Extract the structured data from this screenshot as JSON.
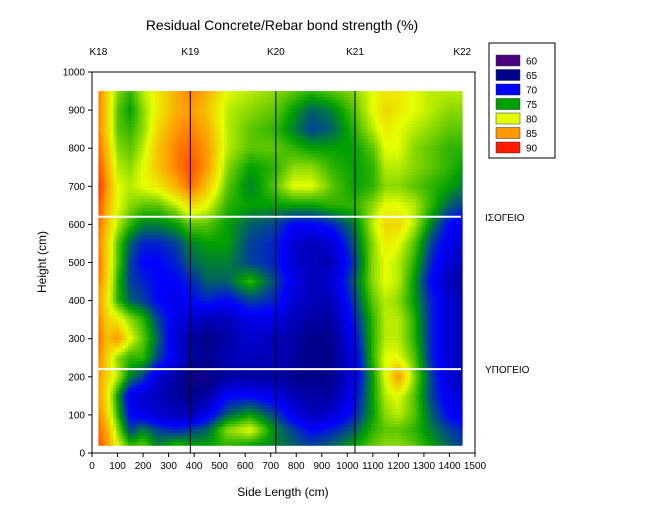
{
  "chart_data": {
    "type": "heatmap",
    "title": "Residual Concrete/Rebar bond strength  (%)",
    "xlabel": "Side Length (cm)",
    "ylabel": "Height (cm)",
    "xlim": [
      0,
      1500
    ],
    "ylim": [
      0,
      1000
    ],
    "x_ticks": [
      0,
      100,
      200,
      300,
      400,
      500,
      600,
      700,
      800,
      900,
      1000,
      1100,
      1200,
      1300,
      1400,
      1500
    ],
    "y_ticks": [
      0,
      100,
      200,
      300,
      400,
      500,
      600,
      700,
      800,
      900,
      1000
    ],
    "data_extent": {
      "x": [
        25,
        1450
      ],
      "y": [
        20,
        950
      ]
    },
    "columns": [
      {
        "label": "K18",
        "x": 25
      },
      {
        "label": "K19",
        "x": 385
      },
      {
        "label": "K20",
        "x": 720
      },
      {
        "label": "K21",
        "x": 1030
      },
      {
        "label": "K22",
        "x": 1450
      }
    ],
    "column_lines_x": [
      385,
      720,
      1030
    ],
    "floors": [
      {
        "label": "ΙΣΟΓΕΙΟ",
        "y": 620
      },
      {
        "label": "ΥΠΟΓΕΙΟ",
        "y": 220
      }
    ],
    "legend": {
      "placement": "top-right",
      "levels": [
        {
          "label": "60",
          "value": 60,
          "color": "#4b0082"
        },
        {
          "label": "65",
          "value": 65,
          "color": "#00008b"
        },
        {
          "label": "70",
          "value": 70,
          "color": "#0000ff"
        },
        {
          "label": "75",
          "value": 75,
          "color": "#00a000"
        },
        {
          "label": "80",
          "value": 80,
          "color": "#e6ff00"
        },
        {
          "label": "85",
          "value": 85,
          "color": "#ff9900"
        },
        {
          "label": "90",
          "value": 90,
          "color": "#ff1a00"
        }
      ]
    },
    "grid_x": [
      25,
      60,
      100,
      150,
      200,
      260,
      330,
      385,
      450,
      530,
      620,
      720,
      790,
      860,
      940,
      1030,
      1100,
      1150,
      1200,
      1260,
      1330,
      1400,
      1450
    ],
    "grid_y": [
      20,
      60,
      100,
      150,
      200,
      250,
      300,
      350,
      400,
      450,
      500,
      550,
      600,
      650,
      700,
      750,
      800,
      850,
      900,
      950
    ],
    "grid_values": [
      [
        88,
        85,
        80,
        76,
        77,
        74,
        76,
        75,
        75,
        76,
        75,
        74,
        73,
        72,
        73,
        75,
        77,
        78,
        78,
        77,
        75,
        73,
        72
      ],
      [
        87,
        84,
        78,
        72,
        74,
        72,
        71,
        72,
        73,
        78,
        80,
        74,
        72,
        70,
        71,
        73,
        76,
        77,
        77,
        76,
        74,
        72,
        71
      ],
      [
        86,
        82,
        76,
        70,
        69,
        68,
        67,
        67,
        69,
        73,
        75,
        72,
        69,
        67,
        68,
        71,
        75,
        78,
        79,
        77,
        73,
        70,
        69
      ],
      [
        85,
        81,
        75,
        69,
        68,
        67,
        66,
        65,
        66,
        70,
        70,
        69,
        67,
        66,
        66,
        70,
        75,
        79,
        80,
        77,
        72,
        69,
        68
      ],
      [
        85,
        82,
        79,
        74,
        72,
        68,
        66,
        64,
        64,
        66,
        66,
        66,
        65,
        65,
        65,
        69,
        75,
        80,
        85,
        78,
        72,
        68,
        67
      ],
      [
        86,
        82,
        78,
        76,
        76,
        72,
        69,
        66,
        65,
        67,
        67,
        67,
        66,
        65,
        65,
        69,
        76,
        80,
        80,
        77,
        71,
        68,
        67
      ],
      [
        87,
        83,
        85,
        80,
        77,
        73,
        68,
        66,
        65,
        66,
        68,
        67,
        66,
        65,
        65,
        70,
        76,
        79,
        79,
        76,
        71,
        68,
        67
      ],
      [
        86,
        82,
        81,
        78,
        76,
        72,
        69,
        68,
        67,
        67,
        69,
        69,
        67,
        66,
        66,
        71,
        76,
        79,
        79,
        76,
        71,
        68,
        67
      ],
      [
        85,
        81,
        76,
        73,
        72,
        70,
        69,
        70,
        71,
        70,
        72,
        71,
        68,
        67,
        67,
        72,
        77,
        79,
        78,
        75,
        71,
        68,
        67
      ],
      [
        86,
        82,
        76,
        72,
        71,
        70,
        70,
        71,
        73,
        73,
        76,
        72,
        69,
        67,
        68,
        73,
        78,
        80,
        79,
        75,
        70,
        67,
        66
      ],
      [
        87,
        82,
        77,
        72,
        70,
        70,
        71,
        73,
        74,
        74,
        72,
        71,
        68,
        67,
        67,
        72,
        78,
        80,
        79,
        76,
        71,
        68,
        67
      ],
      [
        86,
        82,
        77,
        73,
        71,
        71,
        72,
        74,
        75,
        75,
        72,
        71,
        68,
        67,
        68,
        73,
        78,
        81,
        80,
        77,
        72,
        69,
        68
      ],
      [
        87,
        83,
        79,
        76,
        74,
        74,
        75,
        77,
        77,
        75,
        73,
        72,
        70,
        70,
        71,
        74,
        79,
        82,
        82,
        79,
        74,
        70,
        69
      ],
      [
        88,
        84,
        80,
        78,
        77,
        77,
        79,
        82,
        80,
        76,
        75,
        75,
        75,
        75,
        76,
        76,
        78,
        80,
        80,
        79,
        76,
        73,
        72
      ],
      [
        89,
        85,
        80,
        79,
        80,
        81,
        84,
        87,
        83,
        77,
        74,
        77,
        80,
        80,
        77,
        75,
        76,
        78,
        78,
        77,
        76,
        75,
        74
      ],
      [
        88,
        84,
        79,
        78,
        80,
        83,
        86,
        88,
        85,
        78,
        75,
        76,
        78,
        78,
        76,
        75,
        76,
        79,
        79,
        78,
        77,
        76,
        75
      ],
      [
        87,
        83,
        78,
        77,
        79,
        83,
        86,
        87,
        85,
        79,
        77,
        77,
        76,
        75,
        75,
        75,
        77,
        80,
        80,
        78,
        77,
        76,
        76
      ],
      [
        86,
        82,
        77,
        76,
        78,
        82,
        85,
        86,
        84,
        79,
        77,
        76,
        74,
        72,
        73,
        76,
        79,
        81,
        80,
        79,
        78,
        77,
        77
      ],
      [
        86,
        82,
        77,
        75,
        78,
        81,
        84,
        85,
        83,
        79,
        78,
        77,
        75,
        73,
        74,
        77,
        80,
        82,
        81,
        80,
        79,
        78,
        78
      ],
      [
        86,
        82,
        78,
        76,
        79,
        81,
        84,
        86,
        84,
        80,
        79,
        78,
        77,
        76,
        77,
        78,
        80,
        81,
        81,
        80,
        79,
        79,
        79
      ]
    ]
  }
}
